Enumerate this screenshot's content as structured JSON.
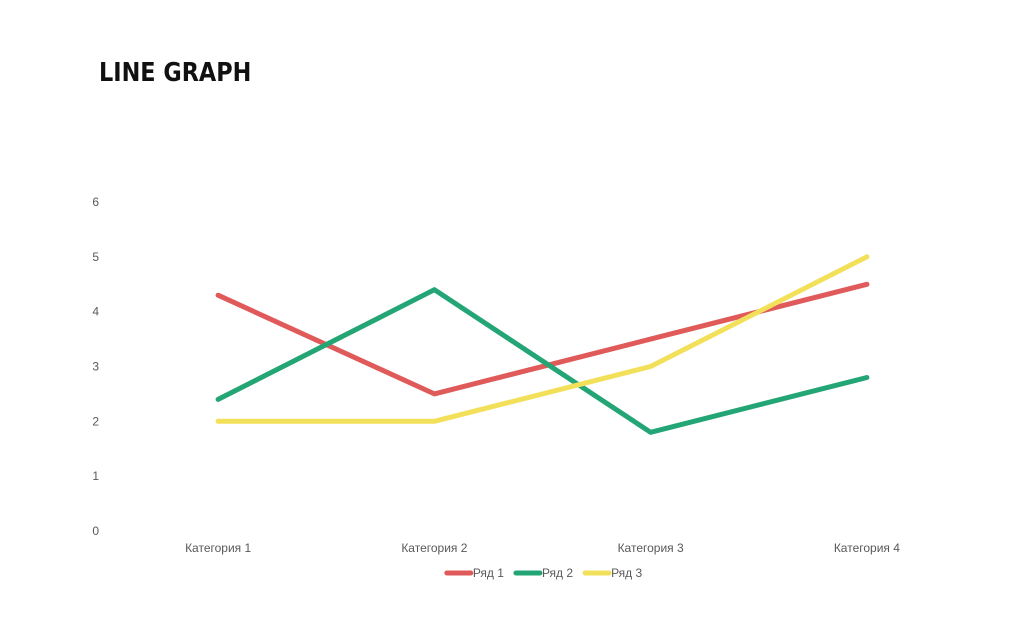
{
  "slide": {
    "title": "LINE GRAPH"
  },
  "chart_data": {
    "type": "line",
    "title": "",
    "xlabel": "",
    "ylabel": "",
    "categories": [
      "Категория 1",
      "Категория 2",
      "Категория 3",
      "Категория 4"
    ],
    "series": [
      {
        "name": "Ряд 1",
        "color": "#e05a5a",
        "values": [
          4.3,
          2.5,
          3.5,
          4.5
        ]
      },
      {
        "name": "Ряд 2",
        "color": "#23a575",
        "values": [
          2.4,
          4.4,
          1.8,
          2.8
        ]
      },
      {
        "name": "Ряд 3",
        "color": "#f3e05a",
        "values": [
          2.0,
          2.0,
          3.0,
          5.0
        ]
      }
    ],
    "ylim": [
      0,
      6
    ],
    "yticks": [
      "0",
      "1",
      "2",
      "3",
      "4",
      "5",
      "6"
    ],
    "grid": false,
    "legend": "bottom"
  }
}
